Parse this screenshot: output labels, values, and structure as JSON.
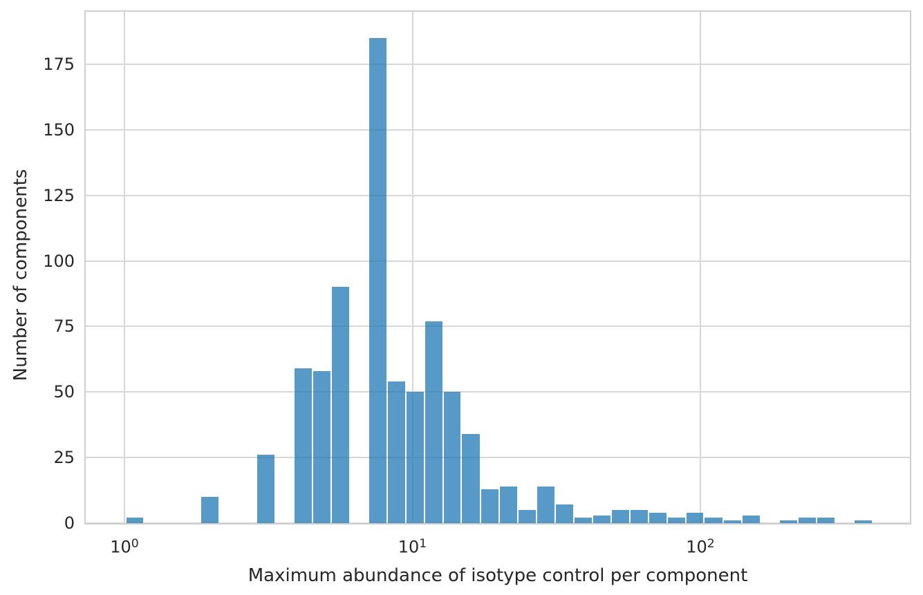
{
  "chart_data": {
    "type": "bar",
    "subtype": "histogram",
    "title": "",
    "xlabel": "Maximum abundance of isotype control per component",
    "ylabel": "Number of components",
    "x_scale": "log",
    "grid": true,
    "legend_position": "none",
    "xlim": [
      0.73,
      534
    ],
    "ylim": [
      0,
      195
    ],
    "y_ticks": [
      0,
      25,
      50,
      75,
      100,
      125,
      150,
      175
    ],
    "x_ticks": [
      {
        "base": "10",
        "exp": "0",
        "value": 1
      },
      {
        "base": "10",
        "exp": "1",
        "value": 10
      },
      {
        "base": "10",
        "exp": "2",
        "value": 100
      }
    ],
    "x_gridlines": [
      1,
      10,
      100
    ],
    "bin_edges": [
      1.01,
      1.17,
      1.36,
      1.58,
      1.84,
      2.13,
      2.48,
      2.88,
      3.34,
      3.87,
      4.5,
      5.22,
      6.06,
      7.04,
      8.17,
      9.49,
      11.0,
      12.8,
      14.8,
      17.2,
      20.0,
      23.2,
      27.0,
      31.3,
      36.4,
      42.2,
      49.0,
      56.9,
      66.1,
      76.7,
      89.0,
      103,
      120,
      139,
      162,
      188,
      218,
      253,
      294,
      341,
      396,
      460,
      534
    ],
    "counts": [
      2,
      0,
      0,
      0,
      10,
      0,
      0,
      26,
      0,
      59,
      58,
      90,
      0,
      185,
      54,
      50,
      77,
      50,
      34,
      13,
      14,
      5,
      14,
      7,
      2,
      3,
      5,
      5,
      4,
      2,
      4,
      2,
      1,
      3,
      0,
      1,
      2,
      2,
      0,
      1,
      0,
      0
    ],
    "colors": {
      "bar_fill": "rgba(31,119,180,0.75)",
      "bar_fill_hex": "#5799C7",
      "grid": "#D7D7D7",
      "spine": "#CFCFCF",
      "text": "#262626",
      "background": "#FFFFFF"
    }
  }
}
